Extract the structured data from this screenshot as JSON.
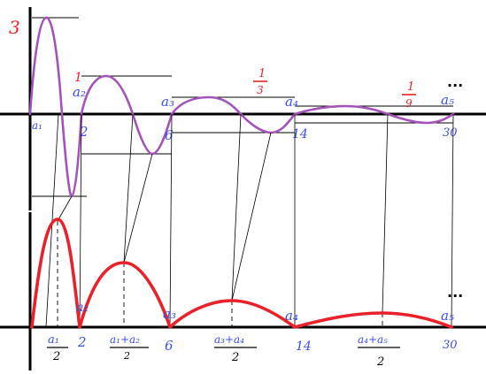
{
  "colors": {
    "purple": "#A453B8",
    "red": "#E8212A",
    "blue": "#3B4FE0",
    "black": "#000000"
  },
  "top_graph": {
    "amplitude_labels": {
      "peak1": "3",
      "peak2": "1",
      "peak3_num": "1",
      "peak3_den": "3",
      "peak4_num": "1",
      "peak4_den": "9"
    },
    "a_labels": {
      "a1": "a₁",
      "a2": "a₂",
      "a3": "a₃",
      "a4": "a₄",
      "a5": "a₅"
    },
    "tick_labels": {
      "t2": "2",
      "t6": "6",
      "t14": "14",
      "t30": "30"
    },
    "ellipsis": "..."
  },
  "bottom_graph": {
    "a_labels": {
      "a2": "a₂",
      "a3": "a₃",
      "a4": "a₄",
      "a5": "a₅"
    },
    "midpoint_labels": {
      "m1_num": "a₁",
      "m1_den": "2",
      "m2_num": "a₁+a₂",
      "m2_den": "2",
      "m3_num": "a₃+a₄",
      "m3_den": "2",
      "m4_num": "a₄+a₅",
      "m4_den": "2"
    },
    "tick_labels": {
      "t2": "2",
      "t6": "6",
      "t14": "14",
      "t30": "30"
    },
    "ellipsis": "..."
  }
}
